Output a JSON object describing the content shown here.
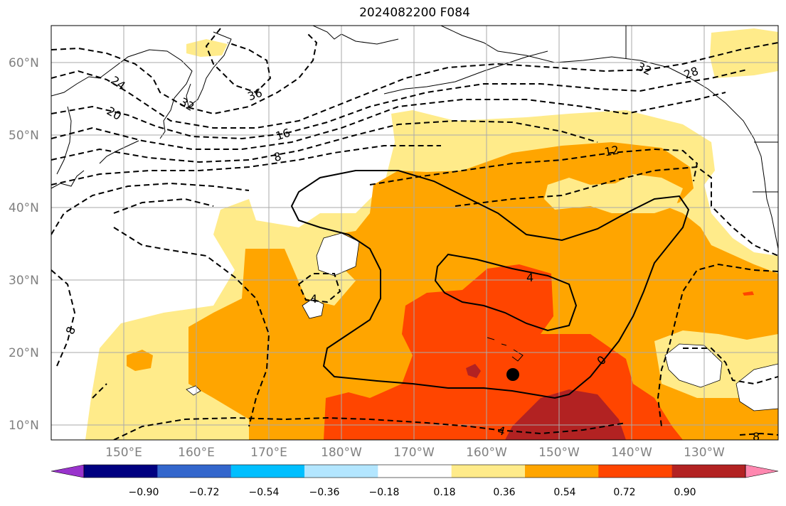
{
  "title": "2024082200 F084",
  "lat_labels": [
    "60°N",
    "50°N",
    "40°N",
    "30°N",
    "20°N",
    "10°N"
  ],
  "lon_labels": [
    "150°E",
    "160°E",
    "170°E",
    "180°W",
    "170°W",
    "160°W",
    "150°W",
    "140°W",
    "130°W"
  ],
  "colorbar": {
    "colors": [
      "#9933cc",
      "#000080",
      "#3366cc",
      "#00bfff",
      "#b3e6ff",
      "#ffffff",
      "#ffeb8a",
      "#ffa500",
      "#ff4500",
      "#b22222",
      "#ff88b0"
    ],
    "tick_labels": [
      "−0.90",
      "−0.72",
      "−0.54",
      "−0.36",
      "−0.18",
      "0.18",
      "0.36",
      "0.54",
      "0.72",
      "0.90"
    ]
  },
  "contour_labels": [
    "24",
    "20",
    "32",
    "36",
    "16",
    "8",
    "12",
    "32",
    "28",
    "4",
    "4",
    "0",
    "8",
    "4",
    "8"
  ],
  "marker": "storm-center"
}
